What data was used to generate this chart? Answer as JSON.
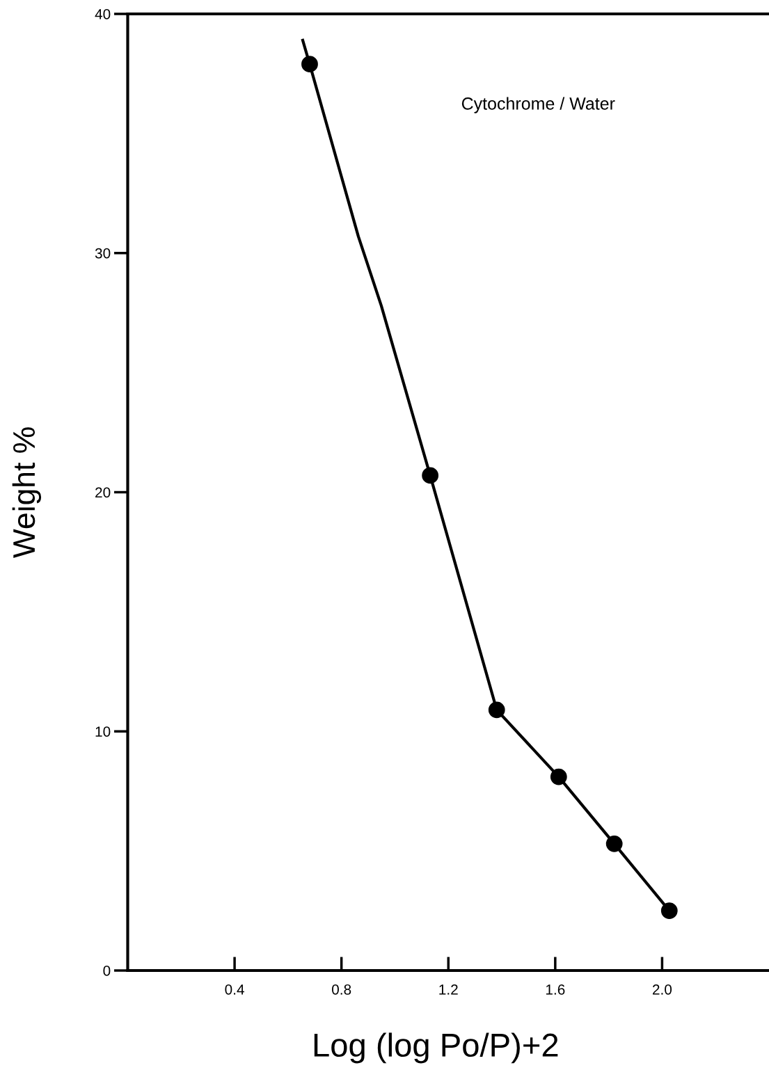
{
  "chart_data": {
    "type": "line",
    "xlabel": "Log (log Po/P)+2",
    "ylabel": "Weight %",
    "annotations": [
      "Cytochrome / Water"
    ],
    "series": [
      {
        "color": "#000000",
        "marker": "none",
        "x": [
          0.655,
          0.681,
          0.863,
          0.949,
          1.132,
          1.381,
          1.613,
          1.821,
          2.027
        ],
        "values": [
          38.9,
          37.9,
          30.7,
          27.8,
          20.7,
          10.9,
          8.1,
          5.3,
          2.5
        ]
      },
      {
        "type": "scatter",
        "color": "#000000",
        "marker": "circle",
        "x": [
          0.681,
          1.132,
          1.381,
          1.613,
          1.821,
          2.027
        ],
        "values": [
          37.9,
          20.7,
          10.9,
          8.1,
          5.3,
          2.5
        ]
      }
    ],
    "xlim": [
      0,
      2.4
    ],
    "ylim": [
      0,
      40
    ],
    "xticks": [
      0.4,
      0.8,
      1.2,
      1.6,
      {
        "value": 2.0,
        "label": "2.0"
      }
    ],
    "yticks": [
      0,
      10,
      20,
      30,
      40
    ],
    "grid": false,
    "legend": false
  }
}
